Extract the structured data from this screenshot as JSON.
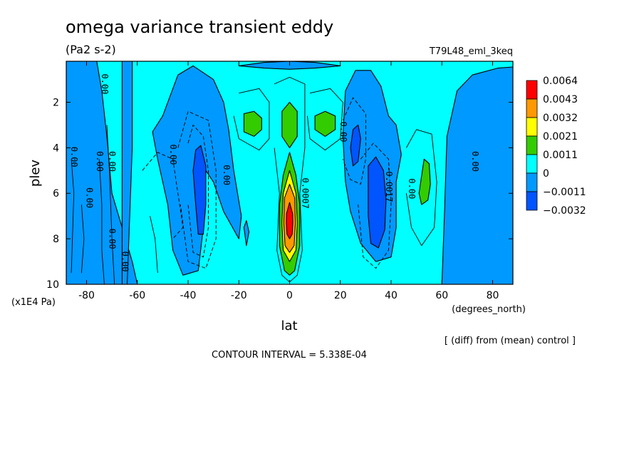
{
  "chart_data": {
    "type": "heatmap",
    "title": "omega variance transient eddy",
    "units": "(Pa2 s-2)",
    "experiment": "T79L48_eml_3keq",
    "xlabel": "lat",
    "xunits": "(degrees_north)",
    "ylabel": "plev",
    "yunits": "(x1E4 Pa)",
    "xlim": [
      -88,
      88
    ],
    "ylim": [
      10,
      0.2
    ],
    "xticks": [
      "-80",
      "-60",
      "-40",
      "-20",
      "0",
      "20",
      "40",
      "60",
      "80"
    ],
    "xtick_values": [
      -80,
      -60,
      -40,
      -20,
      0,
      20,
      40,
      60,
      80
    ],
    "yticks": [
      "2",
      "4",
      "6",
      "8",
      "10"
    ],
    "ytick_values": [
      2,
      4,
      6,
      8,
      10
    ],
    "diff_note": "[ (diff) from (mean) control ]",
    "contour_interval_text": "CONTOUR INTERVAL = 5.338E-04",
    "colorbar": {
      "labels": [
        "0.0064",
        "0.0043",
        "0.0032",
        "0.0021",
        "0.0011",
        "0",
        "−0.0011",
        "−0.0032"
      ],
      "colors": [
        "#ff0000",
        "#ff9900",
        "#ffff00",
        "#33cc00",
        "#00ffff",
        "#0099ff",
        "#0055ff"
      ]
    },
    "background_color": "#00ffff",
    "features": [
      {
        "kind": "region",
        "level": "0 to -0.0011",
        "color": "#0099ff",
        "points": [
          [
            -88,
            0.2
          ],
          [
            -76,
            0.2
          ],
          [
            -74,
            1.5
          ],
          [
            -72,
            3.5
          ],
          [
            -70,
            6
          ],
          [
            -66,
            7.5
          ],
          [
            -62,
            9
          ],
          [
            -60,
            10
          ],
          [
            -88,
            10
          ]
        ]
      },
      {
        "kind": "region",
        "level": "0 to -0.0011",
        "color": "#0099ff",
        "points": [
          [
            -66,
            0.2
          ],
          [
            -62,
            0.2
          ],
          [
            -62,
            4
          ],
          [
            -63,
            7
          ],
          [
            -64,
            10
          ],
          [
            -66,
            10
          ]
        ]
      },
      {
        "kind": "region",
        "level": "0 to -0.0011",
        "color": "#0099ff",
        "points": [
          [
            -54,
            3.3
          ],
          [
            -50,
            2.6
          ],
          [
            -44,
            0.8
          ],
          [
            -38,
            0.4
          ],
          [
            -30,
            1
          ],
          [
            -26,
            2
          ],
          [
            -24,
            3.2
          ],
          [
            -22,
            5
          ],
          [
            -19,
            7
          ],
          [
            -20,
            8
          ],
          [
            -26,
            6.8
          ],
          [
            -30,
            5.5
          ],
          [
            -33,
            5
          ],
          [
            -34,
            7.5
          ],
          [
            -36,
            9.4
          ],
          [
            -42,
            9.6
          ],
          [
            -46,
            8.5
          ],
          [
            -48,
            6.5
          ],
          [
            -52,
            4.5
          ]
        ]
      },
      {
        "kind": "region",
        "level": "0 to -0.0011",
        "color": "#0099ff",
        "points": [
          [
            -20,
            0.4
          ],
          [
            -10,
            0.25
          ],
          [
            0,
            0.2
          ],
          [
            10,
            0.25
          ],
          [
            20,
            0.4
          ],
          [
            10,
            0.5
          ],
          [
            0,
            0.55
          ],
          [
            -10,
            0.5
          ]
        ]
      },
      {
        "kind": "region",
        "level": "0 to -0.0011",
        "color": "#0099ff",
        "points": [
          [
            22,
            5.5
          ],
          [
            21,
            3.5
          ],
          [
            22,
            1.5
          ],
          [
            26,
            0.6
          ],
          [
            32,
            0.6
          ],
          [
            36,
            1.3
          ],
          [
            39,
            2.6
          ],
          [
            42,
            3
          ],
          [
            44,
            4.3
          ],
          [
            42,
            5.5
          ],
          [
            42,
            7.5
          ],
          [
            40,
            8.8
          ],
          [
            34,
            9
          ],
          [
            28,
            8.2
          ],
          [
            24,
            6.8
          ]
        ]
      },
      {
        "kind": "region",
        "level": "0 to -0.0011",
        "color": "#0099ff",
        "points": [
          [
            60,
            10
          ],
          [
            61,
            7
          ],
          [
            62,
            3.5
          ],
          [
            66,
            1.5
          ],
          [
            72,
            0.8
          ],
          [
            82,
            0.5
          ],
          [
            88,
            0.45
          ],
          [
            88,
            10
          ]
        ]
      },
      {
        "kind": "region",
        "level": "0 to -0.0011",
        "color": "#0099ff",
        "points": [
          [
            -18,
            7.5
          ],
          [
            -17,
            7.2
          ],
          [
            -16,
            7.7
          ],
          [
            -17,
            8.3
          ]
        ]
      },
      {
        "kind": "region",
        "level": "-0.0011 to -0.0032",
        "color": "#0055ff",
        "points": [
          [
            -37,
            4.1
          ],
          [
            -35,
            3.9
          ],
          [
            -33,
            4.8
          ],
          [
            -33,
            6.5
          ],
          [
            -34,
            7.8
          ],
          [
            -36,
            7.8
          ],
          [
            -37,
            6.5
          ],
          [
            -38,
            5
          ]
        ]
      },
      {
        "kind": "region",
        "level": "-0.0011 to -0.0032",
        "color": "#0055ff",
        "points": [
          [
            25,
            3.2
          ],
          [
            27,
            3
          ],
          [
            28,
            3.6
          ],
          [
            27,
            4.6
          ],
          [
            25,
            4.8
          ],
          [
            24,
            4
          ]
        ]
      },
      {
        "kind": "region",
        "level": "-0.0011 to -0.0032",
        "color": "#0055ff",
        "points": [
          [
            31,
            4.8
          ],
          [
            34,
            4.4
          ],
          [
            37,
            5
          ],
          [
            38,
            6.3
          ],
          [
            37.5,
            7.6
          ],
          [
            35,
            8.4
          ],
          [
            32,
            8.2
          ],
          [
            31,
            7
          ]
        ]
      },
      {
        "kind": "region",
        "level": "0.0011 to 0.0021",
        "color": "#33cc00",
        "points": [
          [
            -18,
            2.5
          ],
          [
            -14,
            2.4
          ],
          [
            -11,
            2.7
          ],
          [
            -11,
            3.2
          ],
          [
            -14,
            3.5
          ],
          [
            -18,
            3.3
          ]
        ]
      },
      {
        "kind": "region",
        "level": "0.0011 to 0.0021",
        "color": "#33cc00",
        "points": [
          [
            10,
            2.6
          ],
          [
            14,
            2.4
          ],
          [
            18,
            2.6
          ],
          [
            18,
            3.2
          ],
          [
            14,
            3.5
          ],
          [
            10,
            3.2
          ]
        ]
      },
      {
        "kind": "region",
        "level": "0.0011 to 0.0021",
        "color": "#33cc00",
        "points": [
          [
            -3,
            2.4
          ],
          [
            0,
            2
          ],
          [
            3,
            2.4
          ],
          [
            3,
            3.5
          ],
          [
            0,
            4
          ],
          [
            -3,
            3.5
          ]
        ]
      },
      {
        "kind": "region",
        "level": "0.0011 to 0.0021",
        "color": "#33cc00",
        "points": [
          [
            0,
            4.2
          ],
          [
            2.5,
            5.2
          ],
          [
            4,
            6.5
          ],
          [
            4,
            8.3
          ],
          [
            2,
            9.4
          ],
          [
            0,
            9.6
          ],
          [
            -2,
            9.4
          ],
          [
            -4,
            8.3
          ],
          [
            -4,
            6.5
          ],
          [
            -2.5,
            5.2
          ]
        ]
      },
      {
        "kind": "region",
        "level": "0.0011 to 0.0021",
        "color": "#33cc00",
        "points": [
          [
            53,
            4.5
          ],
          [
            55,
            4.7
          ],
          [
            55.5,
            5.6
          ],
          [
            54.5,
            6.3
          ],
          [
            52,
            6.5
          ],
          [
            51,
            6
          ]
        ]
      },
      {
        "kind": "region",
        "level": "0.0021 to 0.0032",
        "color": "#ffff00",
        "points": [
          [
            0,
            5
          ],
          [
            2.5,
            6
          ],
          [
            3,
            7.3
          ],
          [
            2.5,
            8.5
          ],
          [
            0,
            9
          ],
          [
            -2.5,
            8.5
          ],
          [
            -3,
            7.3
          ],
          [
            -2.5,
            6
          ]
        ]
      },
      {
        "kind": "region",
        "level": "0.0032 to 0.0043",
        "color": "#ff9900",
        "points": [
          [
            0,
            5.6
          ],
          [
            2,
            6.2
          ],
          [
            2.3,
            7.3
          ],
          [
            1.8,
            8.3
          ],
          [
            0,
            8.6
          ],
          [
            -1.8,
            8.3
          ],
          [
            -2.3,
            7.3
          ],
          [
            -2,
            6.2
          ]
        ]
      },
      {
        "kind": "region",
        "level": "> 0.0043",
        "color": "#ff0000",
        "points": [
          [
            0,
            6.4
          ],
          [
            1.2,
            6.9
          ],
          [
            1.3,
            7.3
          ],
          [
            1,
            7.8
          ],
          [
            0,
            8
          ],
          [
            -1,
            7.8
          ],
          [
            -1.3,
            7.3
          ],
          [
            -1.2,
            6.9
          ]
        ]
      },
      {
        "kind": "line",
        "dashed": false,
        "points": [
          [
            -72,
            3
          ],
          [
            -71,
            5
          ],
          [
            -70,
            8
          ],
          [
            -69,
            10
          ]
        ]
      },
      {
        "kind": "line",
        "dashed": false,
        "points": [
          [
            -75,
            4.5
          ],
          [
            -74,
            6.5
          ],
          [
            -74,
            8.5
          ],
          [
            -73,
            10
          ]
        ]
      },
      {
        "kind": "line",
        "dashed": false,
        "points": [
          [
            -86,
            4.5
          ],
          [
            -85,
            6
          ],
          [
            -86,
            9.5
          ]
        ]
      },
      {
        "kind": "line",
        "dashed": false,
        "points": [
          [
            -82,
            6.5
          ],
          [
            -81,
            8
          ],
          [
            -82,
            9.5
          ]
        ]
      },
      {
        "kind": "line",
        "dashed": true,
        "points": [
          [
            -40,
            3.8
          ],
          [
            -38,
            3
          ],
          [
            -34,
            3.5
          ],
          [
            -32,
            5
          ],
          [
            -32,
            7.5
          ],
          [
            -34,
            8.8
          ],
          [
            -38,
            8.6
          ],
          [
            -40,
            6.5
          ]
        ]
      },
      {
        "kind": "line",
        "dashed": true,
        "points": [
          [
            -44,
            4
          ],
          [
            -40,
            2.4
          ],
          [
            -32,
            2.8
          ],
          [
            -29,
            5
          ],
          [
            -29,
            8
          ],
          [
            -33,
            9.3
          ],
          [
            -40,
            9
          ],
          [
            -43,
            6.5
          ]
        ]
      },
      {
        "kind": "line",
        "dashed": true,
        "points": [
          [
            -58,
            5
          ],
          [
            -52,
            4.2
          ],
          [
            -46,
            4.5
          ],
          [
            -42,
            7.5
          ],
          [
            -46,
            8
          ]
        ]
      },
      {
        "kind": "line",
        "dashed": true,
        "points": [
          [
            21,
            2.8
          ],
          [
            25,
            1.8
          ],
          [
            30,
            2.5
          ],
          [
            30,
            4.5
          ],
          [
            28,
            5.6
          ],
          [
            24,
            5.4
          ],
          [
            21,
            4.5
          ]
        ]
      },
      {
        "kind": "line",
        "dashed": true,
        "points": [
          [
            28,
            4.5
          ],
          [
            33,
            3.8
          ],
          [
            39,
            4.5
          ],
          [
            40,
            6.5
          ],
          [
            39,
            8.5
          ],
          [
            34,
            9.3
          ],
          [
            29,
            8.8
          ],
          [
            27,
            6.5
          ]
        ]
      },
      {
        "kind": "line",
        "dashed": false,
        "points": [
          [
            -20,
            1.6
          ],
          [
            -12,
            1.4
          ],
          [
            -8,
            2
          ],
          [
            -8,
            3.6
          ],
          [
            -12,
            4.1
          ],
          [
            -20,
            3.6
          ],
          [
            -22,
            2.6
          ]
        ]
      },
      {
        "kind": "line",
        "dashed": false,
        "points": [
          [
            8,
            1.6
          ],
          [
            16,
            1.4
          ],
          [
            21,
            2
          ],
          [
            20,
            3.6
          ],
          [
            14,
            4.1
          ],
          [
            8,
            3.6
          ],
          [
            7,
            2.6
          ]
        ]
      },
      {
        "kind": "line",
        "dashed": false,
        "points": [
          [
            -6,
            1.2
          ],
          [
            0,
            0.9
          ],
          [
            6,
            1.2
          ],
          [
            6,
            4
          ],
          [
            4,
            6
          ],
          [
            5,
            8.5
          ],
          [
            3,
            9.6
          ],
          [
            0,
            9.9
          ],
          [
            -3,
            9.6
          ],
          [
            -5,
            8.5
          ],
          [
            -4,
            6
          ],
          [
            -6,
            4
          ]
        ]
      },
      {
        "kind": "line",
        "dashed": false,
        "points": [
          [
            46,
            4
          ],
          [
            50,
            3.2
          ],
          [
            56,
            3.4
          ],
          [
            58,
            5.5
          ],
          [
            57,
            7.5
          ],
          [
            52,
            8.3
          ],
          [
            48,
            7.5
          ],
          [
            46,
            6
          ]
        ]
      },
      {
        "kind": "line",
        "dashed": false,
        "points": [
          [
            -55,
            7
          ],
          [
            -53,
            8
          ],
          [
            -52,
            9.5
          ]
        ]
      }
    ],
    "contour_labels": [
      {
        "text": "0.00",
        "x": -74,
        "y": 1.2
      },
      {
        "text": "0.00",
        "x": -86,
        "y": 4.4
      },
      {
        "text": "0.00",
        "x": -76,
        "y": 4.6
      },
      {
        "text": "0.00",
        "x": -71,
        "y": 4.6
      },
      {
        "text": "0.00",
        "x": -80,
        "y": 6.2
      },
      {
        "text": "0.00",
        "x": -71,
        "y": 8
      },
      {
        "text": "0.00",
        "x": -66,
        "y": 9
      },
      {
        "text": "0.00",
        "x": -47,
        "y": 4.3
      },
      {
        "text": "0.00",
        "x": -26,
        "y": 5.2
      },
      {
        "text": "0.0007",
        "x": 5,
        "y": 6
      },
      {
        "text": "0.00",
        "x": 20,
        "y": 3.3
      },
      {
        "text": "-0.0017",
        "x": 38,
        "y": 5.6
      },
      {
        "text": "0.00",
        "x": 47,
        "y": 5.8
      },
      {
        "text": "0.00",
        "x": 72,
        "y": 4.6
      }
    ]
  }
}
